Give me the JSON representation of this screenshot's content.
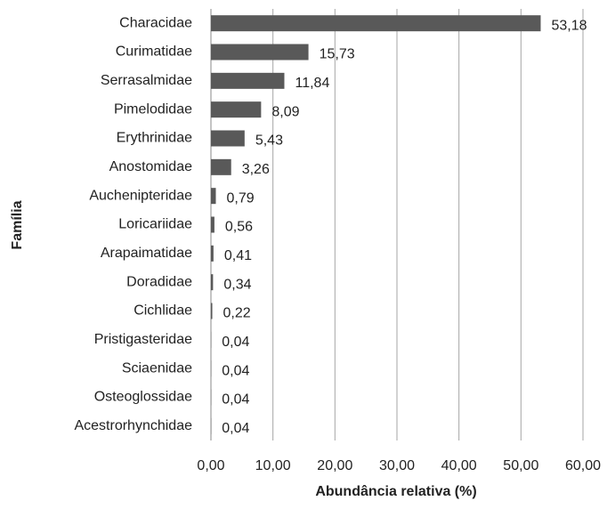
{
  "chart_data": {
    "type": "hbar",
    "categories": [
      "Characidae",
      "Curimatidae",
      "Serrasalmidae",
      "Pimelodidae",
      "Erythrinidae",
      "Anostomidae",
      "Auchenipteridae",
      "Loricariidae",
      "Arapaimatidae",
      "Doradidae",
      "Cichlidae",
      "Pristigasteridae",
      "Sciaenidae",
      "Osteoglossidae",
      "Acestrorhynchidae"
    ],
    "values": [
      53.18,
      15.73,
      11.84,
      8.09,
      5.43,
      3.26,
      0.79,
      0.56,
      0.41,
      0.34,
      0.22,
      0.04,
      0.04,
      0.04,
      0.04
    ],
    "value_labels": [
      "53,18",
      "15,73",
      "11,84",
      "8,09",
      "5,43",
      "3,26",
      "0,79",
      "0,56",
      "0,41",
      "0,34",
      "0,22",
      "0,04",
      "0,04",
      "0,04",
      "0,04"
    ],
    "color": "#595959",
    "xlim": [
      0,
      60
    ],
    "xticks": [
      {
        "value": 0,
        "label": "0,00"
      },
      {
        "value": 10,
        "label": "10,00"
      },
      {
        "value": 20,
        "label": "20,00"
      },
      {
        "value": 30,
        "label": "30,00"
      },
      {
        "value": 40,
        "label": "40,00"
      },
      {
        "value": 50,
        "label": "50,00"
      },
      {
        "value": 60,
        "label": "60,00"
      }
    ],
    "xlabel": "Abundância relativa (%)",
    "ylabel": "Família",
    "grid": true
  }
}
